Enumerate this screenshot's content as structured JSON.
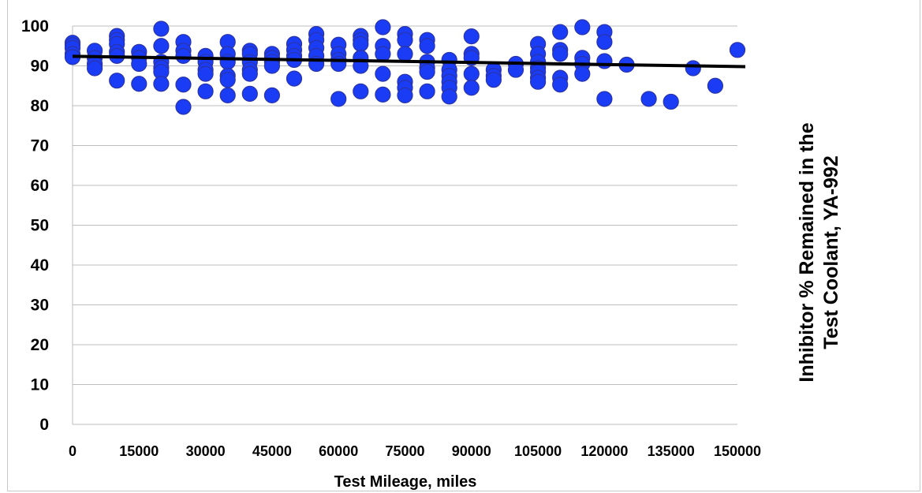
{
  "chart_data": {
    "type": "scatter",
    "title": "",
    "xlabel": "Test Mileage, miles",
    "ylabel_lines": [
      "Inhibitor %  Remained in the",
      "Test Coolant, YA-992"
    ],
    "xlim": [
      0,
      150000
    ],
    "ylim": [
      0,
      100
    ],
    "x_ticks": [
      0,
      15000,
      30000,
      45000,
      60000,
      75000,
      90000,
      105000,
      120000,
      135000,
      150000
    ],
    "x_tick_labels": [
      "0",
      "15000",
      "30000",
      "45000",
      "60000",
      "75000",
      "90000",
      "105000",
      "120000",
      "135000",
      "150000"
    ],
    "y_ticks": [
      0,
      10,
      20,
      30,
      40,
      50,
      60,
      70,
      80,
      90,
      100
    ],
    "y_tick_labels": [
      "0",
      "10",
      "20",
      "30",
      "40",
      "50",
      "60",
      "70",
      "80",
      "90",
      "100"
    ],
    "grid": "horizontal",
    "legend": "none",
    "colors": {
      "marker": "#1a3cf5",
      "marker_edge": "#2a34a8",
      "trendline": "#000000",
      "gridline": "#bdbdbd"
    },
    "trendline": {
      "x": [
        0,
        150000
      ],
      "y": [
        92.4,
        89.8
      ]
    },
    "points": [
      [
        0,
        95.8
      ],
      [
        0,
        95.2
      ],
      [
        0,
        94.5
      ],
      [
        0,
        93.0
      ],
      [
        0,
        92.2
      ],
      [
        5000,
        93.8
      ],
      [
        5000,
        92.0
      ],
      [
        5000,
        90.5
      ],
      [
        5000,
        89.4
      ],
      [
        10000,
        97.5
      ],
      [
        10000,
        96.5
      ],
      [
        10000,
        95.5
      ],
      [
        10000,
        93.5
      ],
      [
        10000,
        92.5
      ],
      [
        10000,
        86.3
      ],
      [
        15000,
        93.5
      ],
      [
        15000,
        92.0
      ],
      [
        15000,
        90.5
      ],
      [
        15000,
        85.5
      ],
      [
        20000,
        99.3
      ],
      [
        20000,
        95.0
      ],
      [
        20000,
        91.0
      ],
      [
        20000,
        89.5
      ],
      [
        20000,
        88.5
      ],
      [
        20000,
        85.5
      ],
      [
        25000,
        96.0
      ],
      [
        25000,
        93.8
      ],
      [
        25000,
        92.5
      ],
      [
        25000,
        85.3
      ],
      [
        25000,
        79.7
      ],
      [
        30000,
        92.5
      ],
      [
        30000,
        91.0
      ],
      [
        30000,
        89.0
      ],
      [
        30000,
        88.0
      ],
      [
        30000,
        83.6
      ],
      [
        35000,
        96.0
      ],
      [
        35000,
        93.0
      ],
      [
        35000,
        91.0
      ],
      [
        35000,
        87.5
      ],
      [
        35000,
        86.5
      ],
      [
        35000,
        82.6
      ],
      [
        40000,
        93.8
      ],
      [
        40000,
        93.0
      ],
      [
        40000,
        91.0
      ],
      [
        40000,
        89.0
      ],
      [
        40000,
        88.0
      ],
      [
        40000,
        83.0
      ],
      [
        45000,
        93.0
      ],
      [
        45000,
        92.0
      ],
      [
        45000,
        91.0
      ],
      [
        45000,
        90.0
      ],
      [
        45000,
        82.6
      ],
      [
        50000,
        95.5
      ],
      [
        50000,
        94.0
      ],
      [
        50000,
        92.5
      ],
      [
        50000,
        91.5
      ],
      [
        50000,
        86.8
      ],
      [
        55000,
        98.0
      ],
      [
        55000,
        96.5
      ],
      [
        55000,
        94.5
      ],
      [
        55000,
        92.5
      ],
      [
        55000,
        90.5
      ],
      [
        60000,
        95.3
      ],
      [
        60000,
        93.0
      ],
      [
        60000,
        91.5
      ],
      [
        60000,
        90.5
      ],
      [
        60000,
        81.7
      ],
      [
        65000,
        97.5
      ],
      [
        65000,
        96.5
      ],
      [
        65000,
        95.5
      ],
      [
        65000,
        92.0
      ],
      [
        65000,
        90.0
      ],
      [
        65000,
        83.6
      ],
      [
        70000,
        99.7
      ],
      [
        70000,
        95.0
      ],
      [
        70000,
        93.0
      ],
      [
        70000,
        88.0
      ],
      [
        70000,
        82.8
      ],
      [
        75000,
        98.0
      ],
      [
        75000,
        96.5
      ],
      [
        75000,
        93.0
      ],
      [
        75000,
        86.0
      ],
      [
        75000,
        84.5
      ],
      [
        75000,
        82.6
      ],
      [
        80000,
        96.5
      ],
      [
        80000,
        95.0
      ],
      [
        80000,
        91.0
      ],
      [
        80000,
        89.5
      ],
      [
        80000,
        88.5
      ],
      [
        80000,
        83.6
      ],
      [
        85000,
        91.5
      ],
      [
        85000,
        89.0
      ],
      [
        85000,
        87.5
      ],
      [
        85000,
        86.0
      ],
      [
        85000,
        84.5
      ],
      [
        85000,
        82.3
      ],
      [
        90000,
        97.4
      ],
      [
        90000,
        93.0
      ],
      [
        90000,
        92.0
      ],
      [
        90000,
        88.0
      ],
      [
        90000,
        84.5
      ],
      [
        95000,
        89.0
      ],
      [
        95000,
        87.5
      ],
      [
        95000,
        86.5
      ],
      [
        100000,
        90.5
      ],
      [
        100000,
        89.0
      ],
      [
        105000,
        95.5
      ],
      [
        105000,
        93.0
      ],
      [
        105000,
        91.0
      ],
      [
        105000,
        89.5
      ],
      [
        105000,
        88.5
      ],
      [
        105000,
        87.0
      ],
      [
        105000,
        86.0
      ],
      [
        110000,
        98.5
      ],
      [
        110000,
        94.0
      ],
      [
        110000,
        93.0
      ],
      [
        110000,
        87.0
      ],
      [
        110000,
        85.3
      ],
      [
        115000,
        99.7
      ],
      [
        115000,
        92.0
      ],
      [
        115000,
        90.5
      ],
      [
        115000,
        88.0
      ],
      [
        120000,
        98.5
      ],
      [
        120000,
        96.0
      ],
      [
        120000,
        91.2
      ],
      [
        120000,
        81.7
      ],
      [
        125000,
        90.3
      ],
      [
        130000,
        81.7
      ],
      [
        135000,
        81.0
      ],
      [
        140000,
        89.4
      ],
      [
        145000,
        85.0
      ],
      [
        150000,
        94.0
      ]
    ]
  }
}
